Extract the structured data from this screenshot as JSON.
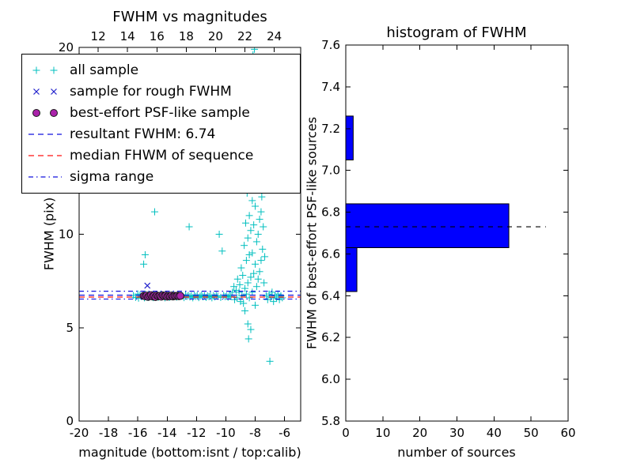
{
  "figure": {
    "background": "#ffffff"
  },
  "chart_data": [
    {
      "type": "scatter",
      "title": "FWHM vs magnitudes",
      "xlabel": "magnitude (bottom:isnt / top:calib)",
      "ylabel": "FWHM (pix)",
      "xlim": [
        -20,
        -4.9
      ],
      "ylim": [
        0,
        20
      ],
      "axes_rect": [
        100,
        60,
        280,
        473
      ],
      "xticks_bottom": [
        "-20",
        "-18",
        "-16",
        "-14",
        "-12",
        "-10",
        "-8",
        "-6"
      ],
      "xticks_top": [
        "12",
        "14",
        "16",
        "18",
        "20",
        "22",
        "24"
      ],
      "calib_minus_isnt_offset": 30.7,
      "yticks": [
        "0",
        "5",
        "10",
        "15",
        "20"
      ],
      "series": [
        {
          "name": "all sample",
          "marker": "plus",
          "color": "#00bfbf",
          "points": [
            [
              -16.3,
              6.72
            ],
            [
              -16.15,
              6.62
            ],
            [
              -16.0,
              6.8
            ],
            [
              -15.95,
              6.58
            ],
            [
              -15.85,
              6.75
            ],
            [
              -15.75,
              6.66
            ],
            [
              -15.65,
              6.72
            ],
            [
              -15.55,
              6.6
            ],
            [
              -15.5,
              6.79
            ],
            [
              -15.45,
              6.65
            ],
            [
              -15.4,
              6.71
            ],
            [
              -15.3,
              6.62
            ],
            [
              -15.25,
              6.76
            ],
            [
              -15.15,
              6.68
            ],
            [
              -15.05,
              6.72
            ],
            [
              -14.95,
              6.61
            ],
            [
              -14.9,
              6.7
            ],
            [
              -14.8,
              6.66
            ],
            [
              -14.7,
              6.74
            ],
            [
              -14.6,
              6.63
            ],
            [
              -14.5,
              6.7
            ],
            [
              -14.45,
              6.77
            ],
            [
              -14.35,
              6.65
            ],
            [
              -14.25,
              6.7
            ],
            [
              -14.15,
              6.6
            ],
            [
              -14.05,
              6.73
            ],
            [
              -13.95,
              6.68
            ],
            [
              -13.85,
              6.62
            ],
            [
              -13.75,
              6.7
            ],
            [
              -13.65,
              6.75
            ],
            [
              -13.55,
              6.66
            ],
            [
              -13.45,
              6.7
            ],
            [
              -13.35,
              6.64
            ],
            [
              -13.25,
              6.72
            ],
            [
              -13.15,
              6.68
            ],
            [
              -13.05,
              6.71
            ],
            [
              -15.6,
              8.4
            ],
            [
              -15.5,
              8.9
            ],
            [
              -14.85,
              11.2
            ],
            [
              -12.95,
              6.7
            ],
            [
              -12.85,
              6.61
            ],
            [
              -12.75,
              6.75
            ],
            [
              -12.65,
              6.68
            ],
            [
              -12.55,
              6.72
            ],
            [
              -12.5,
              10.4
            ],
            [
              -12.45,
              6.65
            ],
            [
              -12.35,
              6.7
            ],
            [
              -12.25,
              6.6
            ],
            [
              -12.15,
              6.73
            ],
            [
              -12.05,
              6.67
            ],
            [
              -11.95,
              6.72
            ],
            [
              -11.85,
              6.61
            ],
            [
              -11.75,
              6.68
            ],
            [
              -11.65,
              6.75
            ],
            [
              -11.55,
              6.65
            ],
            [
              -11.45,
              6.7
            ],
            [
              -11.35,
              6.62
            ],
            [
              -11.25,
              6.7
            ],
            [
              -11.15,
              6.66
            ],
            [
              -11.05,
              6.73
            ],
            [
              -10.95,
              6.6
            ],
            [
              -10.85,
              6.7
            ],
            [
              -10.75,
              6.65
            ],
            [
              -10.65,
              6.71
            ],
            [
              -10.55,
              6.68
            ],
            [
              -10.45,
              10.0
            ],
            [
              -10.35,
              6.62
            ],
            [
              -10.25,
              9.1
            ],
            [
              -10.15,
              6.72
            ],
            [
              -10.05,
              6.66
            ],
            [
              -9.95,
              6.7
            ],
            [
              -9.85,
              6.63
            ],
            [
              -9.75,
              6.74
            ],
            [
              -9.65,
              6.67
            ],
            [
              -9.55,
              6.9
            ],
            [
              -9.45,
              7.2
            ],
            [
              -9.4,
              6.5
            ],
            [
              -9.3,
              7.0
            ],
            [
              -9.25,
              6.6
            ],
            [
              -9.2,
              7.6
            ],
            [
              -9.1,
              6.9
            ],
            [
              -9.05,
              7.3
            ],
            [
              -9.0,
              6.4
            ],
            [
              -8.95,
              8.2
            ],
            [
              -8.9,
              6.7
            ],
            [
              -8.85,
              7.8
            ],
            [
              -8.8,
              6.3
            ],
            [
              -8.75,
              9.4
            ],
            [
              -8.7,
              7.1
            ],
            [
              -8.7,
              5.9
            ],
            [
              -8.65,
              10.6
            ],
            [
              -8.6,
              8.6
            ],
            [
              -8.6,
              6.8
            ],
            [
              -8.55,
              12.2
            ],
            [
              -8.5,
              9.8
            ],
            [
              -8.5,
              7.4
            ],
            [
              -8.5,
              5.2
            ],
            [
              -8.45,
              14.1
            ],
            [
              -8.4,
              11.0
            ],
            [
              -8.4,
              8.9
            ],
            [
              -8.4,
              6.6
            ],
            [
              -8.35,
              16.3
            ],
            [
              -8.3,
              13.2
            ],
            [
              -8.3,
              10.2
            ],
            [
              -8.3,
              7.7
            ],
            [
              -8.3,
              4.9
            ],
            [
              -8.25,
              18.4
            ],
            [
              -8.2,
              15.0
            ],
            [
              -8.2,
              11.8
            ],
            [
              -8.2,
              9.0
            ],
            [
              -8.2,
              6.9
            ],
            [
              -8.15,
              19.6
            ],
            [
              -8.1,
              16.8
            ],
            [
              -8.1,
              13.5
            ],
            [
              -8.1,
              10.5
            ],
            [
              -8.1,
              7.9
            ],
            [
              -8.05,
              19.9
            ],
            [
              -8.0,
              17.5
            ],
            [
              -8.0,
              14.5
            ],
            [
              -8.0,
              11.5
            ],
            [
              -8.0,
              8.4
            ],
            [
              -8.0,
              6.2
            ],
            [
              -7.95,
              18.9
            ],
            [
              -7.9,
              15.8
            ],
            [
              -7.9,
              12.6
            ],
            [
              -7.9,
              9.6
            ],
            [
              -7.9,
              7.2
            ],
            [
              -7.85,
              19.3
            ],
            [
              -7.8,
              16.2
            ],
            [
              -7.8,
              13.0
            ],
            [
              -7.8,
              10.0
            ],
            [
              -7.8,
              7.6
            ],
            [
              -7.75,
              17.0
            ],
            [
              -7.7,
              13.8
            ],
            [
              -7.7,
              10.8
            ],
            [
              -7.7,
              8.0
            ],
            [
              -7.65,
              14.8
            ],
            [
              -7.6,
              11.2
            ],
            [
              -7.6,
              8.6
            ],
            [
              -7.55,
              12.0
            ],
            [
              -7.5,
              9.2
            ],
            [
              -7.45,
              10.4
            ],
            [
              -7.4,
              7.4
            ],
            [
              -7.35,
              8.8
            ],
            [
              -8.45,
              4.4
            ],
            [
              -7.25,
              6.7
            ],
            [
              -7.15,
              6.5
            ],
            [
              -7.05,
              6.8
            ],
            [
              -7.0,
              3.2
            ],
            [
              -6.95,
              6.6
            ],
            [
              -6.85,
              6.9
            ],
            [
              -6.75,
              6.4
            ],
            [
              -6.65,
              6.7
            ],
            [
              -6.55,
              6.6
            ],
            [
              -6.45,
              6.8
            ],
            [
              -6.35,
              6.5
            ],
            [
              -6.25,
              6.7
            ],
            [
              -6.15,
              6.6
            ]
          ]
        },
        {
          "name": "sample for rough FWHM",
          "marker": "x",
          "color": "#2222cc",
          "points": [
            [
              -15.35,
              7.25
            ],
            [
              -15.5,
              6.7
            ],
            [
              -15.2,
              6.68
            ],
            [
              -14.9,
              6.72
            ],
            [
              -14.6,
              6.66
            ],
            [
              -14.3,
              6.7
            ],
            [
              -14.0,
              6.68
            ],
            [
              -13.7,
              6.72
            ],
            [
              -13.4,
              6.67
            ]
          ]
        },
        {
          "name": "best-effort PSF-like sample",
          "marker": "circle",
          "color": "#aa22aa",
          "edge": "#1a1a1a",
          "points": [
            [
              -15.6,
              6.7
            ],
            [
              -15.5,
              6.68
            ],
            [
              -15.4,
              6.72
            ],
            [
              -15.3,
              6.65
            ],
            [
              -15.2,
              6.7
            ],
            [
              -15.1,
              6.74
            ],
            [
              -15.0,
              6.67
            ],
            [
              -14.9,
              6.7
            ],
            [
              -14.8,
              6.64
            ],
            [
              -14.7,
              6.72
            ],
            [
              -14.6,
              6.68
            ],
            [
              -14.5,
              6.7
            ],
            [
              -14.4,
              6.66
            ],
            [
              -14.3,
              6.73
            ],
            [
              -14.2,
              6.69
            ],
            [
              -14.1,
              6.71
            ],
            [
              -14.0,
              6.66
            ],
            [
              -13.9,
              6.7
            ],
            [
              -13.8,
              6.68
            ],
            [
              -13.7,
              6.72
            ],
            [
              -13.6,
              6.67
            ],
            [
              -13.5,
              6.7
            ],
            [
              -13.4,
              6.69
            ],
            [
              -13.3,
              6.71
            ],
            [
              -13.2,
              6.68
            ],
            [
              -13.1,
              6.7
            ]
          ]
        }
      ],
      "hlines": [
        {
          "name": "resultant FWHM",
          "y": 6.74,
          "style": "dashed",
          "color": "#1111dd"
        },
        {
          "name": "median FHWM of sequence",
          "y": 6.64,
          "style": "dashed",
          "color": "#ff1111"
        },
        {
          "name": "sigma range upper",
          "y": 6.95,
          "style": "dashdot",
          "color": "#1111dd"
        },
        {
          "name": "sigma range lower",
          "y": 6.53,
          "style": "dashdot",
          "color": "#1111dd"
        }
      ],
      "legend": {
        "position": "upper left",
        "entries": [
          {
            "label": "all sample",
            "marker": "plus",
            "color": "#00bfbf"
          },
          {
            "label": "sample for rough FWHM",
            "marker": "x",
            "color": "#2222cc"
          },
          {
            "label": "best-effort PSF-like sample",
            "marker": "circle",
            "color": "#aa22aa",
            "edge": "#1a1a1a"
          },
          {
            "label": "resultant FWHM: 6.74",
            "marker": "dashed",
            "color": "#1111dd"
          },
          {
            "label": "median FHWM of sequence",
            "marker": "dashed",
            "color": "#ff1111"
          },
          {
            "label": "sigma range",
            "marker": "dashdot",
            "color": "#1111dd"
          }
        ]
      }
    },
    {
      "type": "bar",
      "orientation": "horizontal",
      "title": "histogram of FWHM",
      "xlabel": "number of sources",
      "ylabel": "FWHM of best-effort PSF-like sources",
      "xlim": [
        0,
        60
      ],
      "ylim": [
        5.8,
        7.6
      ],
      "axes_rect": [
        437,
        57,
        281,
        476
      ],
      "xticks": [
        "0",
        "10",
        "20",
        "30",
        "40",
        "50",
        "60"
      ],
      "yticks": [
        "5.8",
        "6.0",
        "6.2",
        "6.4",
        "6.6",
        "6.8",
        "7.0",
        "7.2",
        "7.4",
        "7.6"
      ],
      "bar_color": "#0000ff",
      "bar_edge": "#000000",
      "bars": [
        {
          "y0": 6.42,
          "y1": 6.63,
          "count": 3
        },
        {
          "y0": 6.63,
          "y1": 6.84,
          "count": 44
        },
        {
          "y0": 7.05,
          "y1": 7.26,
          "count": 2
        }
      ],
      "median_line": {
        "y": 6.73,
        "x0": 0,
        "x1": 54,
        "style": "dashed",
        "color": "#000000"
      }
    }
  ]
}
